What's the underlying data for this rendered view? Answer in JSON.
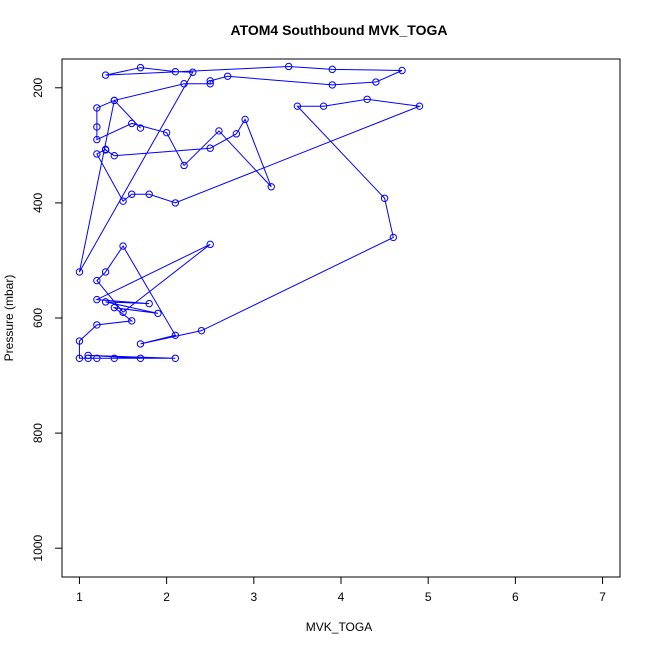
{
  "chart_data": {
    "type": "line",
    "title": "ATOM4 Southbound MVK_TOGA",
    "xlabel": "MVK_TOGA",
    "ylabel": "Pressure (mbar)",
    "xlim": [
      0.8,
      7.2
    ],
    "ylim": [
      1050,
      150
    ],
    "y_reversed": true,
    "x_ticks": [
      1,
      2,
      3,
      4,
      5,
      6,
      7
    ],
    "y_ticks": [
      200,
      400,
      600,
      800,
      1000
    ],
    "grid": false,
    "series_color": "#0000ff",
    "series": [
      {
        "marker": "open-circle",
        "points": [
          [
            1.1,
            670
          ],
          [
            1.2,
            670
          ],
          [
            1.7,
            670
          ],
          [
            1.1,
            665
          ],
          [
            2.1,
            670
          ],
          [
            1.4,
            670
          ],
          [
            1.0,
            670
          ],
          [
            1.0,
            640
          ],
          [
            1.2,
            612
          ],
          [
            1.6,
            605
          ],
          [
            1.4,
            582
          ],
          [
            1.9,
            592
          ],
          [
            1.3,
            572
          ],
          [
            1.8,
            575
          ],
          [
            1.2,
            568
          ],
          [
            2.5,
            472
          ],
          [
            1.5,
            590
          ],
          [
            1.2,
            535
          ],
          [
            1.3,
            520
          ],
          [
            1.5,
            475
          ],
          [
            2.1,
            630
          ],
          [
            1.7,
            645
          ],
          [
            2.4,
            622
          ],
          [
            4.6,
            460
          ],
          [
            4.5,
            392
          ],
          [
            3.5,
            232
          ],
          [
            3.8,
            232
          ],
          [
            4.3,
            220
          ],
          [
            4.9,
            232
          ],
          [
            2.1,
            400
          ],
          [
            1.8,
            385
          ],
          [
            1.6,
            385
          ],
          [
            1.5,
            397
          ],
          [
            1.2,
            315
          ],
          [
            1.3,
            307
          ],
          [
            1.3,
            308
          ],
          [
            1.4,
            318
          ],
          [
            2.5,
            305
          ],
          [
            2.8,
            280
          ],
          [
            2.9,
            255
          ],
          [
            3.2,
            372
          ],
          [
            2.6,
            275
          ],
          [
            2.2,
            335
          ],
          [
            2.0,
            278
          ],
          [
            1.6,
            262
          ],
          [
            1.2,
            290
          ],
          [
            1.2,
            268
          ],
          [
            1.2,
            235
          ],
          [
            1.4,
            222
          ],
          [
            2.2,
            193
          ],
          [
            2.5,
            193
          ],
          [
            2.5,
            188
          ],
          [
            2.7,
            180
          ],
          [
            3.9,
            195
          ],
          [
            4.4,
            190
          ],
          [
            4.7,
            170
          ],
          [
            3.9,
            168
          ],
          [
            3.4,
            163
          ],
          [
            1.3,
            178
          ],
          [
            1.7,
            165
          ],
          [
            2.1,
            172
          ],
          [
            2.3,
            173
          ],
          [
            1.0,
            520
          ],
          [
            1.4,
            222
          ],
          [
            1.7,
            270
          ]
        ]
      }
    ]
  }
}
